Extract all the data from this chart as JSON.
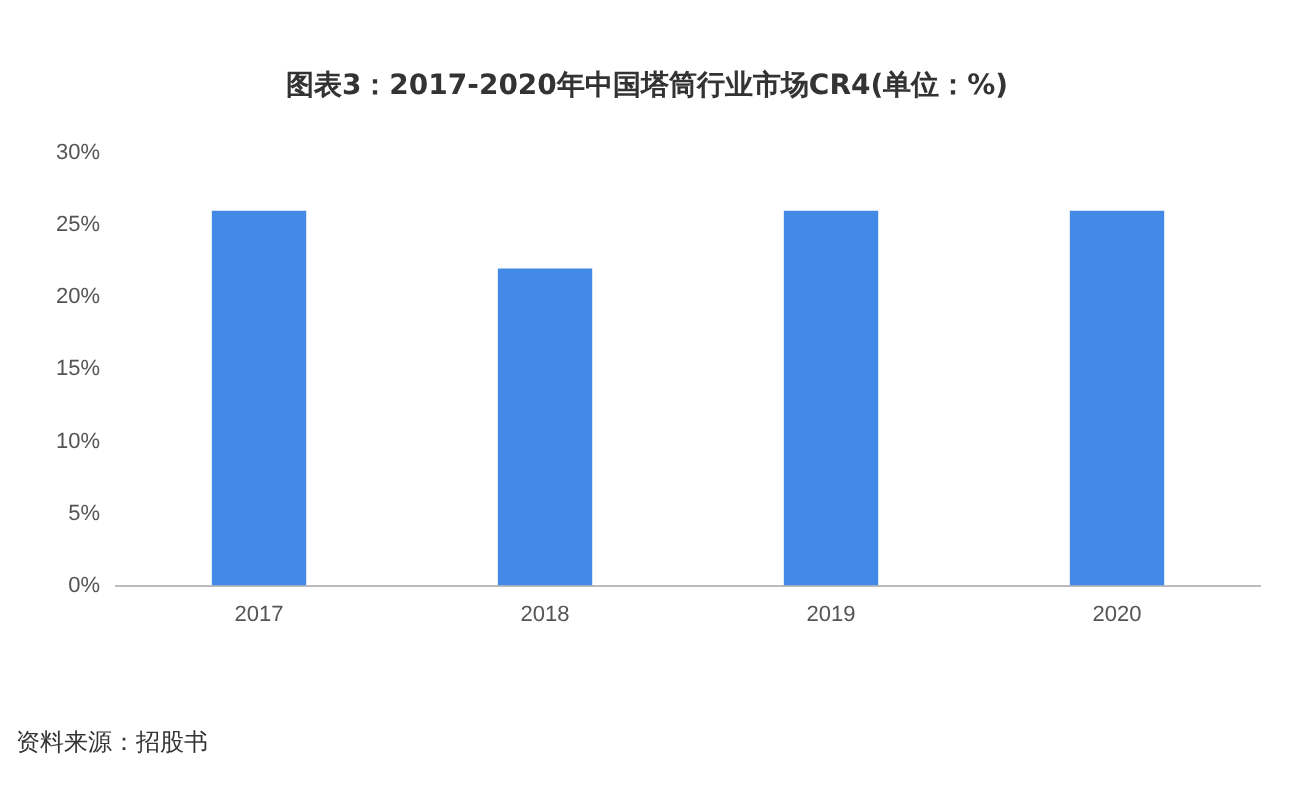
{
  "chart_data": {
    "type": "bar",
    "title": "图表3：2017-2020年中国塔筒行业市场CR4(单位：%)",
    "categories": [
      "2017",
      "2018",
      "2019",
      "2020"
    ],
    "values": [
      26,
      22,
      26,
      26
    ],
    "color": "#4389e6",
    "ylim": [
      0,
      30
    ],
    "yticks": [
      {
        "value": 0,
        "label": "0%"
      },
      {
        "value": 5,
        "label": "5%"
      },
      {
        "value": 10,
        "label": "10%"
      },
      {
        "value": 15,
        "label": "15%"
      },
      {
        "value": 20,
        "label": "20%"
      },
      {
        "value": 25,
        "label": "25%"
      },
      {
        "value": 30,
        "label": "30%"
      }
    ],
    "grid": false,
    "legend": false,
    "annotations": [
      "资料来源：招股书"
    ]
  }
}
